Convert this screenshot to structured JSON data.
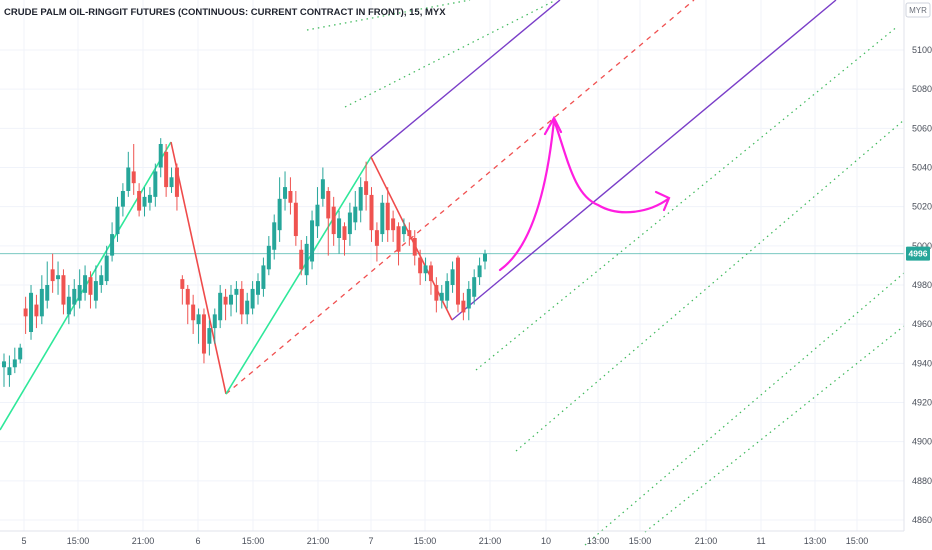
{
  "title": "CRUDE PALM OIL-RINGGIT FUTURES (CONTINUOUS: CURRENT CONTRACT IN FRONT), 15, MYX",
  "currency": "MYR",
  "colors": {
    "up": "#26a69a",
    "down": "#ef5350",
    "wave_up": "#2ee89a",
    "wave_down": "#ef4b4b",
    "pitchfork": "#7a3ec8",
    "median": "#f05050",
    "warning_lines": "#3cb85a",
    "arrow": "#ff1ee0",
    "last_price_bg": "#26a69a"
  },
  "chart_data": {
    "type": "candlestick",
    "y_axis_labels": [
      "5100",
      "5080",
      "5060",
      "5040",
      "5020",
      "5000",
      "4980",
      "4960",
      "4940",
      "4920",
      "4900",
      "4880",
      "4860"
    ],
    "y_axis_range": [
      4855,
      5107
    ],
    "x_axis_labels": [
      "5",
      "15:00",
      "21:00",
      "6",
      "15:00",
      "21:00",
      "7",
      "15:00",
      "21:00",
      "10",
      "13:00",
      "15:00",
      "21:00",
      "11",
      "13:00",
      "15:00"
    ],
    "last_price": "4996",
    "candles": [
      [
        4938,
        4941,
        4928,
        4945
      ],
      [
        4934,
        4938,
        4928,
        4944
      ],
      [
        4938,
        4942,
        4935,
        4948
      ],
      [
        4942,
        4948,
        4940,
        4950
      ],
      [
        4968,
        4964,
        4955,
        4974
      ],
      [
        4956,
        4976,
        4952,
        4980
      ],
      [
        4970,
        4964,
        4958,
        4975
      ],
      [
        4964,
        4978,
        4960,
        4985
      ],
      [
        4972,
        4980,
        4968,
        4992
      ],
      [
        4988,
        4982,
        4976,
        4996
      ],
      [
        4983,
        4985,
        4975,
        4992
      ],
      [
        4985,
        4970,
        4965,
        4988
      ],
      [
        4965,
        4974,
        4960,
        4980
      ],
      [
        4970,
        4978,
        4964,
        4983
      ],
      [
        4972,
        4980,
        4968,
        4988
      ],
      [
        4976,
        4985,
        4972,
        4990
      ],
      [
        4984,
        4975,
        4968,
        4987
      ],
      [
        4972,
        4982,
        4968,
        4990
      ],
      [
        4980,
        4985,
        4976,
        4990
      ],
      [
        4982,
        4995,
        4980,
        5000
      ],
      [
        4995,
        5006,
        4992,
        5012
      ],
      [
        5006,
        5020,
        5002,
        5025
      ],
      [
        5020,
        5028,
        5015,
        5032
      ],
      [
        5028,
        5040,
        5025,
        5048
      ],
      [
        5038,
        5032,
        5026,
        5052
      ],
      [
        5028,
        5018,
        5015,
        5032
      ],
      [
        5020,
        5025,
        5015,
        5030
      ],
      [
        5022,
        5026,
        5018,
        5030
      ],
      [
        5025,
        5038,
        5020,
        5042
      ],
      [
        5040,
        5052,
        5035,
        5055
      ],
      [
        5048,
        5030,
        5025,
        5052
      ],
      [
        5030,
        5035,
        5027,
        5040
      ],
      [
        5040,
        5025,
        5018,
        5042
      ],
      [
        4983,
        4978,
        4970,
        4985
      ],
      [
        4978,
        4970,
        4960,
        4980
      ],
      [
        4970,
        4962,
        4955,
        4975
      ],
      [
        4960,
        4965,
        4950,
        4968
      ],
      [
        4965,
        4945,
        4940,
        4968
      ],
      [
        4950,
        4958,
        4944,
        4962
      ],
      [
        4958,
        4965,
        4950,
        4968
      ],
      [
        4962,
        4976,
        4958,
        4980
      ],
      [
        4974,
        4970,
        4962,
        4978
      ],
      [
        4970,
        4975,
        4964,
        4980
      ],
      [
        4975,
        4978,
        4966,
        4982
      ],
      [
        4978,
        4965,
        4960,
        4982
      ],
      [
        4965,
        4972,
        4960,
        4976
      ],
      [
        4968,
        4978,
        4965,
        4982
      ],
      [
        4975,
        4982,
        4970,
        4986
      ],
      [
        4978,
        4990,
        4974,
        4994
      ],
      [
        4988,
        5000,
        4985,
        5005
      ],
      [
        4998,
        5012,
        4993,
        5016
      ],
      [
        5008,
        5024,
        5002,
        5035
      ],
      [
        5024,
        5030,
        5018,
        5038
      ],
      [
        5028,
        5022,
        5016,
        5035
      ],
      [
        5022,
        5005,
        5000,
        5028
      ],
      [
        4998,
        4988,
        4985,
        5003
      ],
      [
        4985,
        5001,
        4980,
        5005
      ],
      [
        4992,
        5013,
        4988,
        5018
      ],
      [
        5010,
        5021,
        5004,
        5030
      ],
      [
        5024,
        5034,
        5020,
        5040
      ],
      [
        5028,
        5014,
        4995,
        5030
      ],
      [
        5020,
        5006,
        5000,
        5025
      ],
      [
        5004,
        5014,
        4996,
        5018
      ],
      [
        5010,
        5003,
        4995,
        5012
      ],
      [
        5006,
        5017,
        5000,
        5022
      ],
      [
        5012,
        5020,
        5008,
        5028
      ],
      [
        5018,
        5030,
        5012,
        5035
      ],
      [
        5033,
        5026,
        5018,
        5043
      ],
      [
        5026,
        5008,
        5002,
        5030
      ],
      [
        5008,
        5000,
        4992,
        5012
      ],
      [
        5006,
        5022,
        5002,
        5026
      ],
      [
        5022,
        5008,
        5002,
        5030
      ],
      [
        5014,
        5008,
        5002,
        5018
      ],
      [
        5010,
        4997,
        4990,
        5012
      ],
      [
        5006,
        5010,
        5002,
        5014
      ],
      [
        5008,
        5005,
        5000,
        5012
      ],
      [
        5004,
        4995,
        4990,
        5008
      ],
      [
        4994,
        4986,
        4980,
        4998
      ],
      [
        4986,
        4990,
        4982,
        4994
      ],
      [
        4990,
        4982,
        4975,
        4992
      ],
      [
        4980,
        4972,
        4966,
        4984
      ],
      [
        4972,
        4976,
        4968,
        4980
      ],
      [
        4972,
        4982,
        4968,
        4986
      ],
      [
        4980,
        4988,
        4976,
        4992
      ],
      [
        4994,
        4970,
        4966,
        4995
      ],
      [
        4972,
        4966,
        4962,
        4976
      ],
      [
        4968,
        4978,
        4962,
        4982
      ],
      [
        4974,
        4984,
        4970,
        4988
      ],
      [
        4984,
        4990,
        4980,
        4994
      ],
      [
        4992,
        4996,
        4988,
        4998
      ]
    ]
  }
}
